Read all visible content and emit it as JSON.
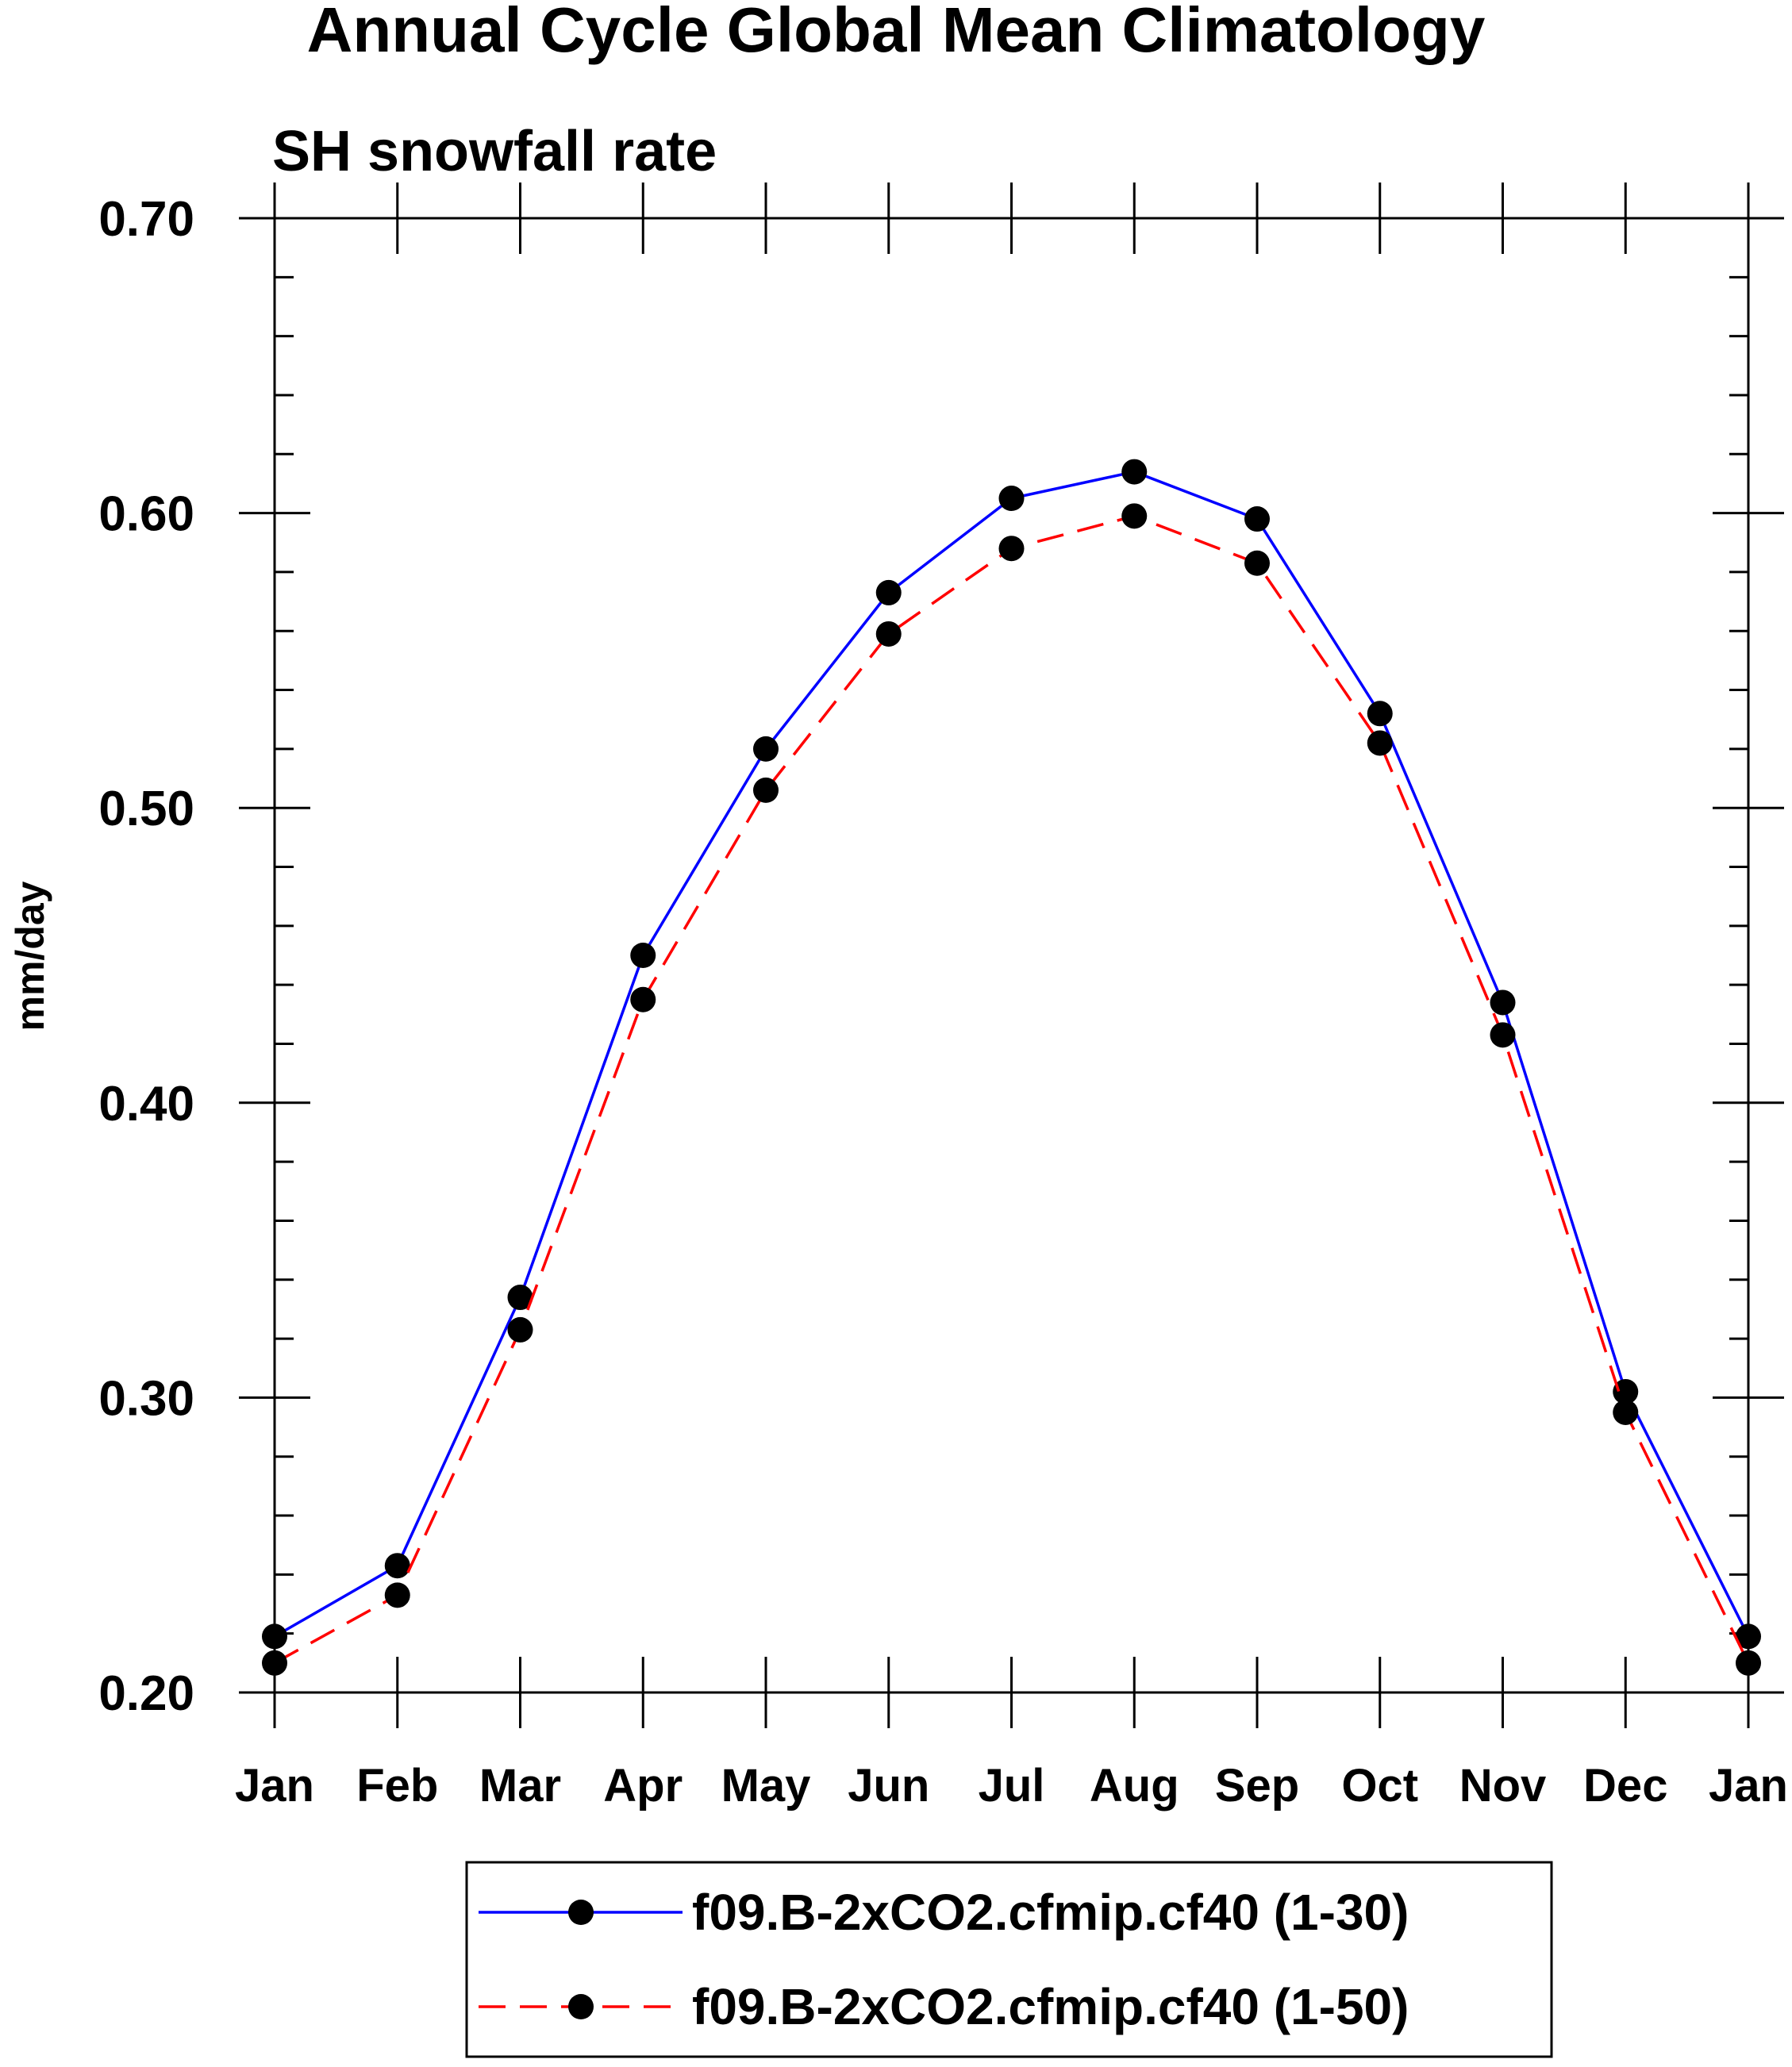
{
  "chart_data": {
    "type": "line",
    "title": "Annual Cycle Global Mean Climatology",
    "subtitle": "SH snowfall rate",
    "xlabel": "",
    "ylabel": "mm/day",
    "categories": [
      "Jan",
      "Feb",
      "Mar",
      "Apr",
      "May",
      "Jun",
      "Jul",
      "Aug",
      "Sep",
      "Oct",
      "Nov",
      "Dec",
      "Jan"
    ],
    "ylim": [
      0.2,
      0.7
    ],
    "yticks": [
      0.2,
      0.3,
      0.4,
      0.5,
      0.6,
      0.7
    ],
    "ytick_labels": [
      "0.20",
      "0.30",
      "0.40",
      "0.50",
      "0.60",
      "0.70"
    ],
    "y_minor_step": 0.02,
    "grid": false,
    "legend_position": "bottom-center",
    "series": [
      {
        "name": "f09.B-2xCO2.cfmip.cf40 (1-30)",
        "color": "#0000ff",
        "dash": "solid",
        "marker": "filled-circle",
        "values": [
          0.219,
          0.243,
          0.334,
          0.45,
          0.52,
          0.573,
          0.605,
          0.614,
          0.598,
          0.532,
          0.434,
          0.302,
          0.219
        ]
      },
      {
        "name": "f09.B-2xCO2.cfmip.cf40 (1-50)",
        "color": "#ff0000",
        "dash": "dashed",
        "marker": "filled-circle",
        "values": [
          0.21,
          0.233,
          0.323,
          0.435,
          0.506,
          0.559,
          0.588,
          0.599,
          0.583,
          0.522,
          0.423,
          0.295,
          0.21
        ]
      }
    ]
  }
}
